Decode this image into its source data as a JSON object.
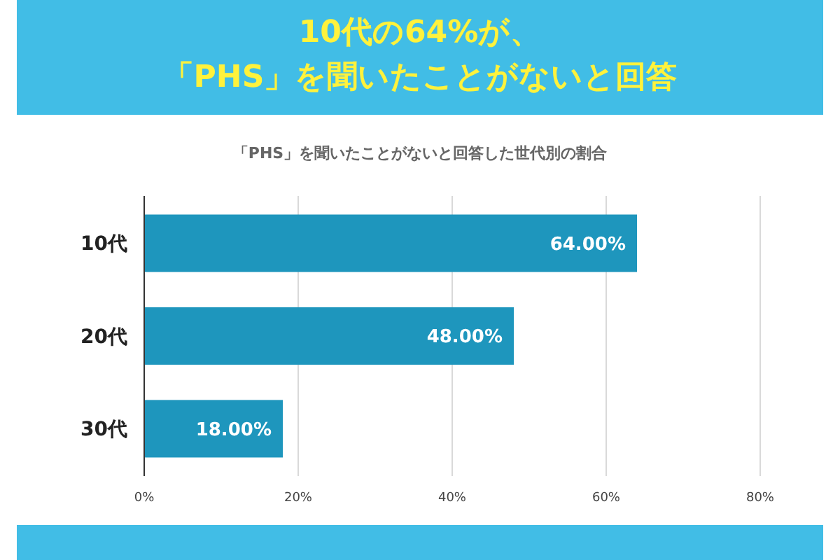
{
  "chart_data": {
    "type": "bar",
    "orientation": "horizontal",
    "title": "10代の64%が、「PHS」を聞いたことがないと回答",
    "subtitle": "「PHS」を聞いたことがないと回答した世代別の割合",
    "categories": [
      "10代",
      "20代",
      "30代"
    ],
    "values": [
      64,
      48,
      18
    ],
    "color": "#1e96bd",
    "value_labels": [
      "64.00%",
      "48.00%",
      "18.00%"
    ],
    "xlim": [
      0,
      80
    ],
    "xticks": [
      {
        "value": 0,
        "label": "0%"
      },
      {
        "value": 20,
        "label": "20%"
      },
      {
        "value": 40,
        "label": "40%"
      },
      {
        "value": 60,
        "label": "60%"
      },
      {
        "value": 80,
        "label": "80%"
      }
    ],
    "grid": "x"
  }
}
